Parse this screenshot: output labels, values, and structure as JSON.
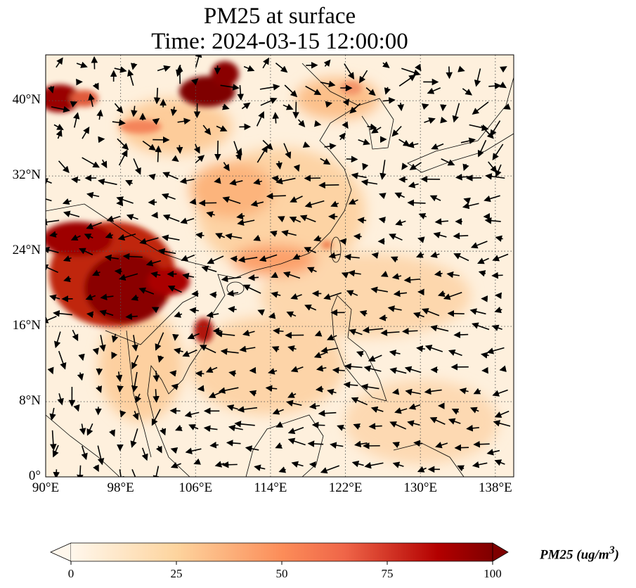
{
  "title": {
    "line1": "PM25 at surface",
    "line2": "Time: 2024-03-15 12:00:00"
  },
  "map": {
    "lon_range": [
      90,
      140
    ],
    "lat_range": [
      0,
      45
    ],
    "lat_ticks": [
      {
        "value": 0,
        "label": "0°"
      },
      {
        "value": 8,
        "label": "8°N"
      },
      {
        "value": 16,
        "label": "16°N"
      },
      {
        "value": 24,
        "label": "24°N"
      },
      {
        "value": 32,
        "label": "32°N"
      },
      {
        "value": 40,
        "label": "40°N"
      }
    ],
    "lon_ticks": [
      {
        "value": 90,
        "label": "90°E"
      },
      {
        "value": 98,
        "label": "98°E"
      },
      {
        "value": 106,
        "label": "106°E"
      },
      {
        "value": 114,
        "label": "114°E"
      },
      {
        "value": 122,
        "label": "122°E"
      },
      {
        "value": 130,
        "label": "130°E"
      },
      {
        "value": 138,
        "label": "138°E"
      }
    ],
    "overlay": "wind-vectors"
  },
  "colorbar": {
    "label": "PM25 (ug/m",
    "label_sup": "3",
    "label_end": ")",
    "min": 0,
    "max": 100,
    "colormap": "OrRd",
    "ticks": [
      "0",
      "25",
      "50",
      "75",
      "100"
    ],
    "colors": [
      "#fff7ec",
      "#fdd49e",
      "#fc8d59",
      "#d7301f",
      "#b00000",
      "#7f0000"
    ]
  }
}
